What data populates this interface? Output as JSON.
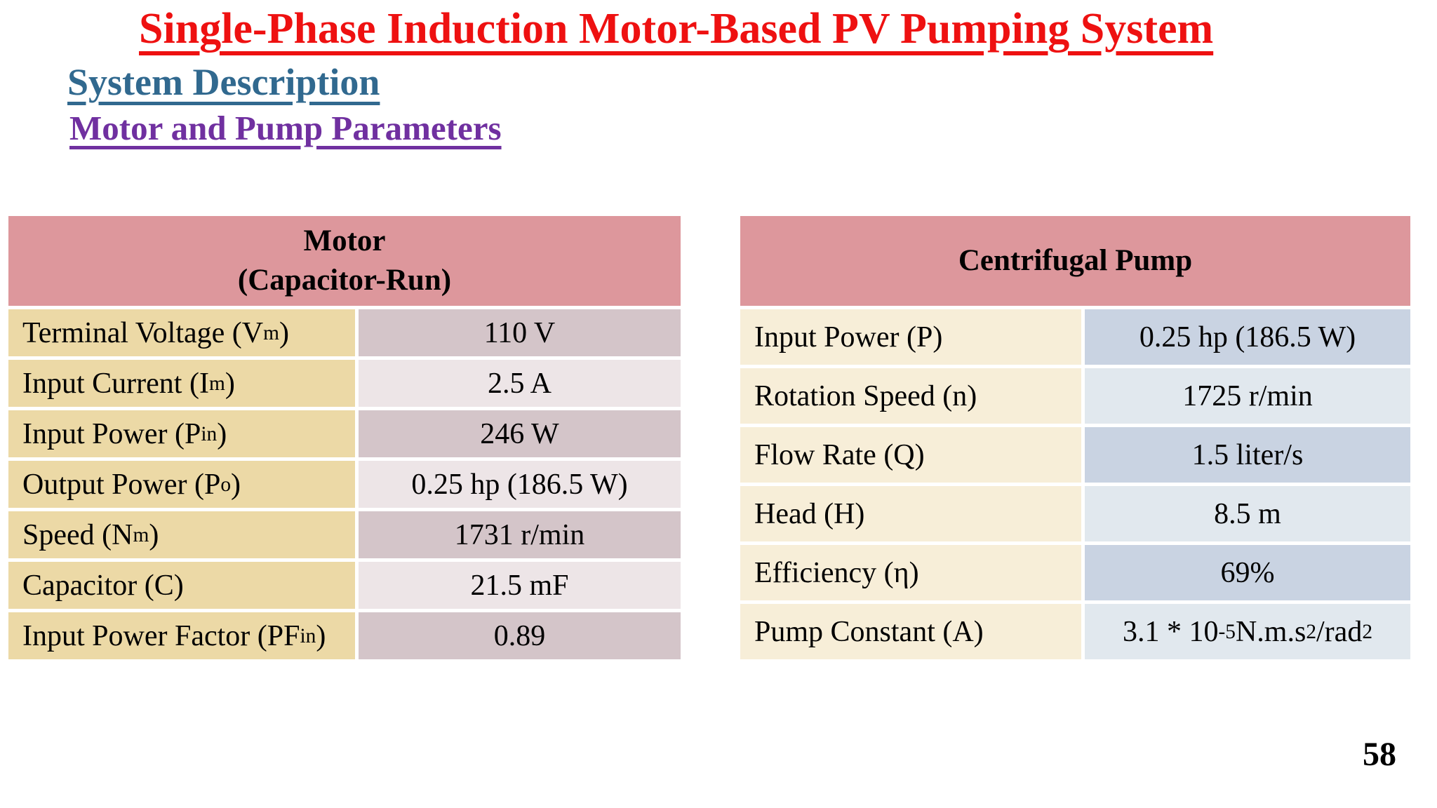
{
  "headings": {
    "title": "Single-Phase Induction Motor-Based PV Pumping System",
    "title_color": "#ee1111",
    "subtitle": "System Description",
    "subtitle_color": "#31698f",
    "section": "Motor and Pump Parameters",
    "section_color": "#7030a0"
  },
  "page": {
    "number": "58"
  },
  "tables": [
    {
      "id": "motor",
      "header_lines": [
        "Motor",
        "(Capacitor-Run)"
      ],
      "colors": {
        "header_bg": "#dd979c",
        "label_bg": "#ecd9a6",
        "val_odd": "#d4c5c9",
        "val_even": "#ede5e7"
      },
      "rows": [
        {
          "label": [
            {
              "t": "Terminal Voltage (V"
            },
            {
              "t": "m",
              "s": "sub"
            },
            {
              "t": ")"
            }
          ],
          "value": [
            {
              "t": "110 V"
            }
          ]
        },
        {
          "label": [
            {
              "t": "Input Current (I"
            },
            {
              "t": "m",
              "s": "sub"
            },
            {
              "t": ")"
            }
          ],
          "value": [
            {
              "t": "2.5 A"
            }
          ]
        },
        {
          "label": [
            {
              "t": "Input Power (P"
            },
            {
              "t": "in",
              "s": "sub"
            },
            {
              "t": ")"
            }
          ],
          "value": [
            {
              "t": "246 W"
            }
          ]
        },
        {
          "label": [
            {
              "t": "Output Power (P"
            },
            {
              "t": "o",
              "s": "sub"
            },
            {
              "t": ")"
            }
          ],
          "value": [
            {
              "t": "0.25 hp (186.5 W)"
            }
          ]
        },
        {
          "label": [
            {
              "t": "Speed (N"
            },
            {
              "t": "m",
              "s": "sub"
            },
            {
              "t": ")"
            }
          ],
          "value": [
            {
              "t": "1731 r/min"
            }
          ]
        },
        {
          "label": [
            {
              "t": "Capacitor (C)"
            }
          ],
          "value": [
            {
              "t": "21.5 mF"
            }
          ]
        },
        {
          "label": [
            {
              "t": "Input Power Factor (PF"
            },
            {
              "t": "in",
              "s": "sub"
            },
            {
              "t": ")"
            }
          ],
          "value": [
            {
              "t": "0.89"
            }
          ]
        }
      ]
    },
    {
      "id": "pump",
      "header_lines": [
        "Centrifugal Pump"
      ],
      "colors": {
        "header_bg": "#dd979c",
        "label_bg": "#f7eed8",
        "val_odd": "#c9d3e2",
        "val_even": "#e1e8ee"
      },
      "rows": [
        {
          "label": [
            {
              "t": "Input Power (P)"
            }
          ],
          "value": [
            {
              "t": "0.25 hp (186.5 W)"
            }
          ]
        },
        {
          "label": [
            {
              "t": "Rotation Speed (n)"
            }
          ],
          "value": [
            {
              "t": "1725 r/min"
            }
          ]
        },
        {
          "label": [
            {
              "t": "Flow Rate (Q)"
            }
          ],
          "value": [
            {
              "t": "1.5 liter/s"
            }
          ]
        },
        {
          "label": [
            {
              "t": "Head (H)"
            }
          ],
          "value": [
            {
              "t": "8.5 m"
            }
          ]
        },
        {
          "label": [
            {
              "t": "Efficiency (η)"
            }
          ],
          "value": [
            {
              "t": "69%"
            }
          ]
        },
        {
          "label": [
            {
              "t": "Pump Constant (A)"
            }
          ],
          "value": [
            {
              "t": "3.1 * 10"
            },
            {
              "t": "-5",
              "s": "sup"
            },
            {
              "t": " N.m.s"
            },
            {
              "t": "2",
              "s": "sup"
            },
            {
              "t": "/rad"
            },
            {
              "t": "2",
              "s": "sup"
            }
          ]
        }
      ]
    }
  ]
}
